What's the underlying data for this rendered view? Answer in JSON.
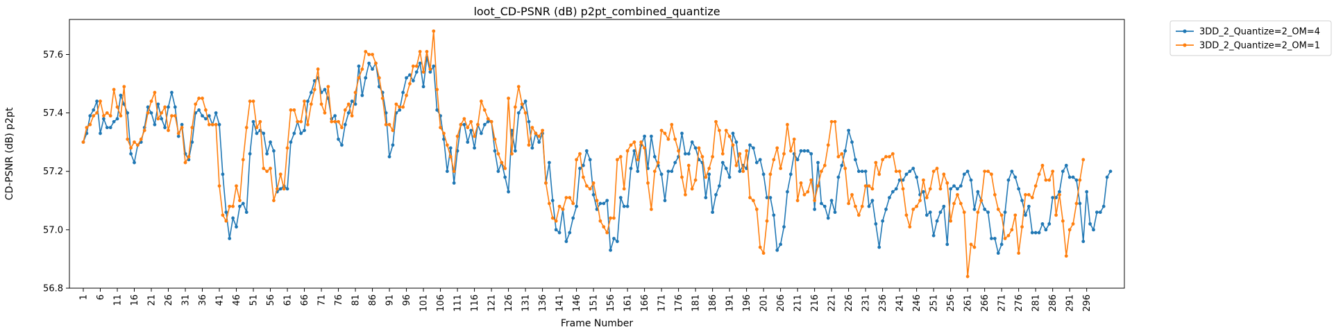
{
  "chart_data": {
    "type": "line",
    "title": "loot_CD-PSNR (dB) p2pt_combined_quantize",
    "xlabel": "Frame Number",
    "ylabel": "CD-PSNR (dB) p2pt",
    "xlim": [
      1,
      300
    ],
    "ylim": [
      56.8,
      57.72
    ],
    "yticks": [
      "56.8",
      "57.0",
      "57.2",
      "57.4",
      "57.6"
    ],
    "xtick_step": 5,
    "grid": false,
    "legend_placement": "outside-top-right",
    "series": [
      {
        "name": "3DD_2_Quantize=2_OM=4",
        "color": "#1f77b4",
        "values": [
          57.3,
          57.33,
          57.39,
          57.41,
          57.44,
          57.33,
          57.38,
          57.35,
          57.35,
          57.37,
          57.38,
          57.46,
          57.43,
          57.4,
          57.26,
          57.23,
          57.29,
          57.3,
          57.35,
          57.42,
          57.4,
          57.36,
          57.43,
          57.38,
          57.35,
          57.42,
          57.47,
          57.42,
          57.32,
          57.36,
          57.26,
          57.24,
          57.3,
          57.4,
          57.41,
          57.39,
          57.38,
          57.39,
          57.36,
          57.4,
          57.36,
          57.19,
          57.06,
          56.97,
          57.04,
          57.01,
          57.08,
          57.09,
          57.06,
          57.26,
          57.37,
          57.33,
          57.34,
          57.33,
          57.26,
          57.3,
          57.27,
          57.13,
          57.14,
          57.15,
          57.14,
          57.3,
          57.33,
          57.37,
          57.33,
          57.34,
          57.44,
          57.47,
          57.51,
          57.52,
          57.47,
          57.48,
          57.45,
          57.38,
          57.39,
          57.31,
          57.29,
          57.36,
          57.4,
          57.44,
          57.43,
          57.56,
          57.46,
          57.52,
          57.57,
          57.55,
          57.57,
          57.49,
          57.47,
          57.4,
          57.25,
          57.29,
          57.4,
          57.41,
          57.47,
          57.52,
          57.53,
          57.51,
          57.54,
          57.57,
          57.49,
          57.59,
          57.54,
          57.56,
          57.41,
          57.39,
          57.31,
          57.2,
          57.28,
          57.16,
          57.27,
          57.36,
          57.36,
          57.3,
          57.34,
          57.28,
          57.36,
          57.33,
          57.36,
          57.37,
          57.37,
          57.27,
          57.2,
          57.23,
          57.18,
          57.13,
          57.34,
          57.27,
          57.4,
          57.42,
          57.44,
          57.37,
          57.28,
          57.33,
          57.3,
          57.33,
          57.16,
          57.23,
          57.1,
          57.0,
          56.99,
          57.07,
          56.96,
          56.99,
          57.04,
          57.08,
          57.21,
          57.22,
          57.27,
          57.24,
          57.12,
          57.07,
          57.09,
          57.09,
          57.1,
          56.93,
          56.97,
          56.96,
          57.11,
          57.08,
          57.08,
          57.21,
          57.27,
          57.2,
          57.29,
          57.32,
          57.21,
          57.32,
          57.25,
          57.22,
          57.19,
          57.1,
          57.2,
          57.2,
          57.23,
          57.25,
          57.33,
          57.26,
          57.26,
          57.3,
          57.28,
          57.24,
          57.23,
          57.11,
          57.19,
          57.06,
          57.12,
          57.15,
          57.23,
          57.21,
          57.18,
          57.33,
          57.3,
          57.2,
          57.22,
          57.21,
          57.29,
          57.28,
          57.23,
          57.24,
          57.19,
          57.11,
          57.11,
          57.05,
          56.93,
          56.95,
          57.01,
          57.13,
          57.19,
          57.26,
          57.24,
          57.27,
          57.27,
          57.27,
          57.26,
          57.07,
          57.23,
          57.09,
          57.08,
          57.04,
          57.1,
          57.06,
          57.18,
          57.22,
          57.27,
          57.34,
          57.3,
          57.24,
          57.2,
          57.2,
          57.2,
          57.08,
          57.1,
          57.02,
          56.94,
          57.03,
          57.07,
          57.11,
          57.13,
          57.14,
          57.17,
          57.17,
          57.19,
          57.2,
          57.21,
          57.18,
          57.12,
          57.13,
          57.05,
          57.06,
          56.98,
          57.03,
          57.06,
          57.08,
          56.95,
          57.14,
          57.15,
          57.14,
          57.15,
          57.19,
          57.2,
          57.17,
          57.07,
          57.13,
          57.1,
          57.07,
          57.06,
          56.97,
          56.97,
          56.92,
          56.95,
          57.06,
          57.17,
          57.2,
          57.18,
          57.14,
          57.1,
          57.05,
          57.08,
          56.99,
          56.99,
          56.99,
          57.02,
          57.0,
          57.02,
          57.11,
          57.11,
          57.13,
          57.2,
          57.22,
          57.18,
          57.18,
          57.17,
          57.09,
          56.96,
          57.13,
          57.02,
          57.0,
          57.06,
          57.06,
          57.08,
          57.18,
          57.2
        ]
      },
      {
        "name": "3DD_2_Quantize=2_OM=1",
        "color": "#ff7f0e",
        "values": [
          57.3,
          57.35,
          57.36,
          57.39,
          57.4,
          57.44,
          57.39,
          57.4,
          57.39,
          57.48,
          57.42,
          57.39,
          57.49,
          57.31,
          57.28,
          57.3,
          57.29,
          57.31,
          57.34,
          57.4,
          57.44,
          57.47,
          57.38,
          57.4,
          57.42,
          57.34,
          57.39,
          57.39,
          57.33,
          57.35,
          57.23,
          57.25,
          57.35,
          57.43,
          57.45,
          57.45,
          57.41,
          57.36,
          57.36,
          57.36,
          57.15,
          57.05,
          57.03,
          57.08,
          57.08,
          57.15,
          57.1,
          57.24,
          57.35,
          57.44,
          57.44,
          57.35,
          57.37,
          57.21,
          57.2,
          57.21,
          57.1,
          57.14,
          57.19,
          57.14,
          57.28,
          57.41,
          57.41,
          57.37,
          57.37,
          57.44,
          57.36,
          57.43,
          57.48,
          57.55,
          57.43,
          57.4,
          57.49,
          57.37,
          57.37,
          57.37,
          57.35,
          57.41,
          57.43,
          57.39,
          57.47,
          57.52,
          57.55,
          57.61,
          57.6,
          57.6,
          57.57,
          57.52,
          57.45,
          57.36,
          57.36,
          57.34,
          57.43,
          57.42,
          57.42,
          57.46,
          57.5,
          57.56,
          57.56,
          57.61,
          57.54,
          57.61,
          57.55,
          57.68,
          57.48,
          57.35,
          57.33,
          57.29,
          57.25,
          57.2,
          57.32,
          57.36,
          57.38,
          57.35,
          57.37,
          57.32,
          57.36,
          57.44,
          57.41,
          57.38,
          57.37,
          57.31,
          57.26,
          57.23,
          57.21,
          57.45,
          57.26,
          57.42,
          57.49,
          57.43,
          57.4,
          57.29,
          57.35,
          57.33,
          57.32,
          57.34,
          57.16,
          57.09,
          57.04,
          57.03,
          57.08,
          57.07,
          57.11,
          57.11,
          57.09,
          57.24,
          57.26,
          57.18,
          57.15,
          57.14,
          57.16,
          57.1,
          57.03,
          57.01,
          56.99,
          57.04,
          57.04,
          57.24,
          57.25,
          57.14,
          57.27,
          57.29,
          57.3,
          57.24,
          57.3,
          57.28,
          57.16,
          57.07,
          57.2,
          57.23,
          57.34,
          57.33,
          57.31,
          57.36,
          57.31,
          57.27,
          57.18,
          57.12,
          57.22,
          57.14,
          57.17,
          57.28,
          57.25,
          57.18,
          57.21,
          57.25,
          57.37,
          57.34,
          57.26,
          57.34,
          57.32,
          57.29,
          57.22,
          57.26,
          57.2,
          57.27,
          57.11,
          57.1,
          57.07,
          56.94,
          56.92,
          57.03,
          57.19,
          57.24,
          57.28,
          57.21,
          57.26,
          57.36,
          57.27,
          57.31,
          57.1,
          57.16,
          57.12,
          57.13,
          57.17,
          57.1,
          57.15,
          57.2,
          57.22,
          57.29,
          57.37,
          57.37,
          57.25,
          57.26,
          57.21,
          57.09,
          57.12,
          57.08,
          57.05,
          57.08,
          57.15,
          57.15,
          57.14,
          57.23,
          57.19,
          57.24,
          57.25,
          57.25,
          57.26,
          57.2,
          57.2,
          57.14,
          57.05,
          57.01,
          57.07,
          57.08,
          57.1,
          57.17,
          57.11,
          57.14,
          57.2,
          57.21,
          57.14,
          57.19,
          57.16,
          57.03,
          57.09,
          57.12,
          57.09,
          57.06,
          56.84,
          56.95,
          56.94,
          57.06,
          57.1,
          57.2,
          57.2,
          57.19,
          57.12,
          57.07,
          57.05,
          56.97,
          56.98,
          57.0,
          57.05,
          56.92,
          57.01,
          57.12,
          57.12,
          57.11,
          57.15,
          57.19,
          57.22,
          57.17,
          57.17,
          57.2,
          57.05,
          57.12,
          57.03,
          56.91,
          57.0,
          57.02,
          57.09,
          57.17,
          57.24
        ]
      }
    ]
  }
}
